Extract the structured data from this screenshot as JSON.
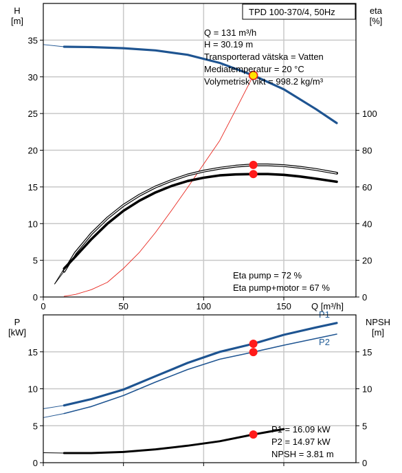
{
  "colors": {
    "head": "#1e5491",
    "p_blue": "#1e5491",
    "red_curve": "#e8241c",
    "marker_red": "#ff1b1b",
    "marker_yellow": "#ffe400",
    "grid": "#c8c8c8",
    "axis": "#000000"
  },
  "chart_data": [
    {
      "type": "line",
      "title": "TPD 100-370/4, 50Hz",
      "xlabel": "Q [m³/h]",
      "ylabel_left": [
        "H",
        "[m]"
      ],
      "ylabel_right": [
        "eta",
        "[%]"
      ],
      "xlim": [
        0,
        195
      ],
      "ylim_left": [
        0,
        40
      ],
      "ylim_right": [
        0,
        160
      ],
      "xticks": [
        "0",
        "50",
        "100",
        "150"
      ],
      "xtick_values": [
        0,
        50,
        100,
        150
      ],
      "yticks_left": [
        "0",
        "5",
        "10",
        "15",
        "20",
        "25",
        "30",
        "35"
      ],
      "ytick_values_left": [
        0,
        5,
        10,
        15,
        20,
        25,
        30,
        35
      ],
      "yticks_right": [
        "0",
        "20",
        "40",
        "60",
        "80",
        "100"
      ],
      "ytick_values_right": [
        0,
        20,
        40,
        60,
        80,
        100
      ],
      "grid": true,
      "info": [
        "Q = 131 m³/h",
        "H = 30.19 m",
        "Transporterad vätska = Vatten",
        "Mediatemperatur = 20 °C",
        "Volymetrisk vikt = 998.2 kg/m³"
      ],
      "eta_info": [
        "Eta pump = 72 %",
        "Eta pump+motor = 67 %"
      ],
      "series": [
        {
          "id": "head",
          "axis": "left",
          "x": [
            0,
            13,
            30,
            50,
            70,
            90,
            110,
            131,
            150,
            170,
            183
          ],
          "y": [
            34.4,
            34.1,
            34.05,
            33.9,
            33.6,
            33.0,
            31.9,
            30.19,
            28.3,
            25.6,
            23.7
          ],
          "thin_until": 13
        },
        {
          "id": "system",
          "axis": "left",
          "x": [
            13,
            20,
            30,
            40,
            50,
            60,
            70,
            80,
            90,
            100,
            110,
            120,
            131
          ],
          "y": [
            0.1,
            0.35,
            1.0,
            2.0,
            3.9,
            6.1,
            8.8,
            11.8,
            14.9,
            18.1,
            21.3,
            25.5,
            30.19
          ]
        },
        {
          "id": "eta_pump",
          "axis": "right",
          "x": [
            7,
            13,
            20,
            30,
            40,
            50,
            60,
            70,
            80,
            90,
            100,
            110,
            120,
            131,
            140,
            150,
            160,
            170,
            183
          ],
          "y": [
            7,
            14,
            24,
            34.5,
            43,
            50,
            55.5,
            60,
            63.5,
            66.5,
            68.6,
            70.2,
            71.3,
            72,
            72,
            71.6,
            70.7,
            69.5,
            67.5
          ],
          "thin_until": 13
        },
        {
          "id": "eta_pump_motor",
          "axis": "right",
          "x": [
            7,
            13,
            20,
            30,
            40,
            50,
            60,
            70,
            80,
            90,
            100,
            110,
            120,
            131,
            140,
            150,
            160,
            170,
            183
          ],
          "y": [
            7,
            15.5,
            22,
            31.5,
            40,
            47,
            52.5,
            57,
            60.5,
            63.2,
            65,
            66.3,
            66.8,
            67,
            67,
            66.6,
            65.7,
            64.5,
            62.8
          ],
          "thin_until": 13
        }
      ],
      "markers": [
        {
          "id": "duty-point",
          "axis": "left",
          "x": 131,
          "y": 30.19,
          "color": "yellow"
        },
        {
          "id": "eta-pump-point",
          "axis": "right",
          "x": 131,
          "y": 72,
          "color": "red"
        },
        {
          "id": "eta-motor-point",
          "axis": "right",
          "x": 131,
          "y": 67,
          "color": "red"
        }
      ]
    },
    {
      "type": "line",
      "ylabel_left": [
        "P",
        "[kW]"
      ],
      "ylabel_right": [
        "NPSH",
        "[m]"
      ],
      "xlim": [
        0,
        195
      ],
      "ylim_left": [
        0,
        20
      ],
      "ylim_right": [
        0,
        20
      ],
      "yticks_left": [
        "0",
        "5",
        "10",
        "15"
      ],
      "ytick_values_left": [
        0,
        5,
        10,
        15
      ],
      "yticks_right": [
        "0",
        "5",
        "10",
        "15"
      ],
      "ytick_values_right": [
        0,
        5,
        10,
        15
      ],
      "grid": true,
      "info": [
        "P1 = 16.09 kW",
        "P2 = 14.97 kW",
        "NPSH = 3.81 m"
      ],
      "series": [
        {
          "id": "P1",
          "name": "P1",
          "axis": "left",
          "x": [
            0,
            13,
            30,
            50,
            70,
            90,
            110,
            131,
            150,
            170,
            183
          ],
          "y": [
            7.3,
            7.75,
            8.6,
            9.9,
            11.7,
            13.5,
            15.0,
            16.09,
            17.3,
            18.3,
            18.9
          ],
          "thin_until": 13
        },
        {
          "id": "P2",
          "name": "P2",
          "axis": "left",
          "x": [
            0,
            13,
            30,
            50,
            70,
            90,
            110,
            131,
            150,
            170,
            183
          ],
          "y": [
            6.1,
            6.65,
            7.6,
            9.1,
            10.9,
            12.6,
            14.0,
            14.97,
            15.9,
            16.8,
            17.4
          ],
          "thin_until": 13
        },
        {
          "id": "NPSH",
          "axis": "right",
          "x": [
            0,
            13,
            30,
            50,
            70,
            90,
            110,
            131,
            150
          ],
          "y": [
            1.35,
            1.3,
            1.3,
            1.45,
            1.8,
            2.3,
            2.9,
            3.81,
            4.55
          ],
          "thin_until": 13
        }
      ],
      "markers": [
        {
          "id": "p1-point",
          "axis": "left",
          "x": 131,
          "y": 16.09,
          "color": "red"
        },
        {
          "id": "p2-point",
          "axis": "left",
          "x": 131,
          "y": 14.97,
          "color": "red"
        },
        {
          "id": "npsh-point",
          "axis": "right",
          "x": 131,
          "y": 3.81,
          "color": "red"
        }
      ]
    }
  ]
}
